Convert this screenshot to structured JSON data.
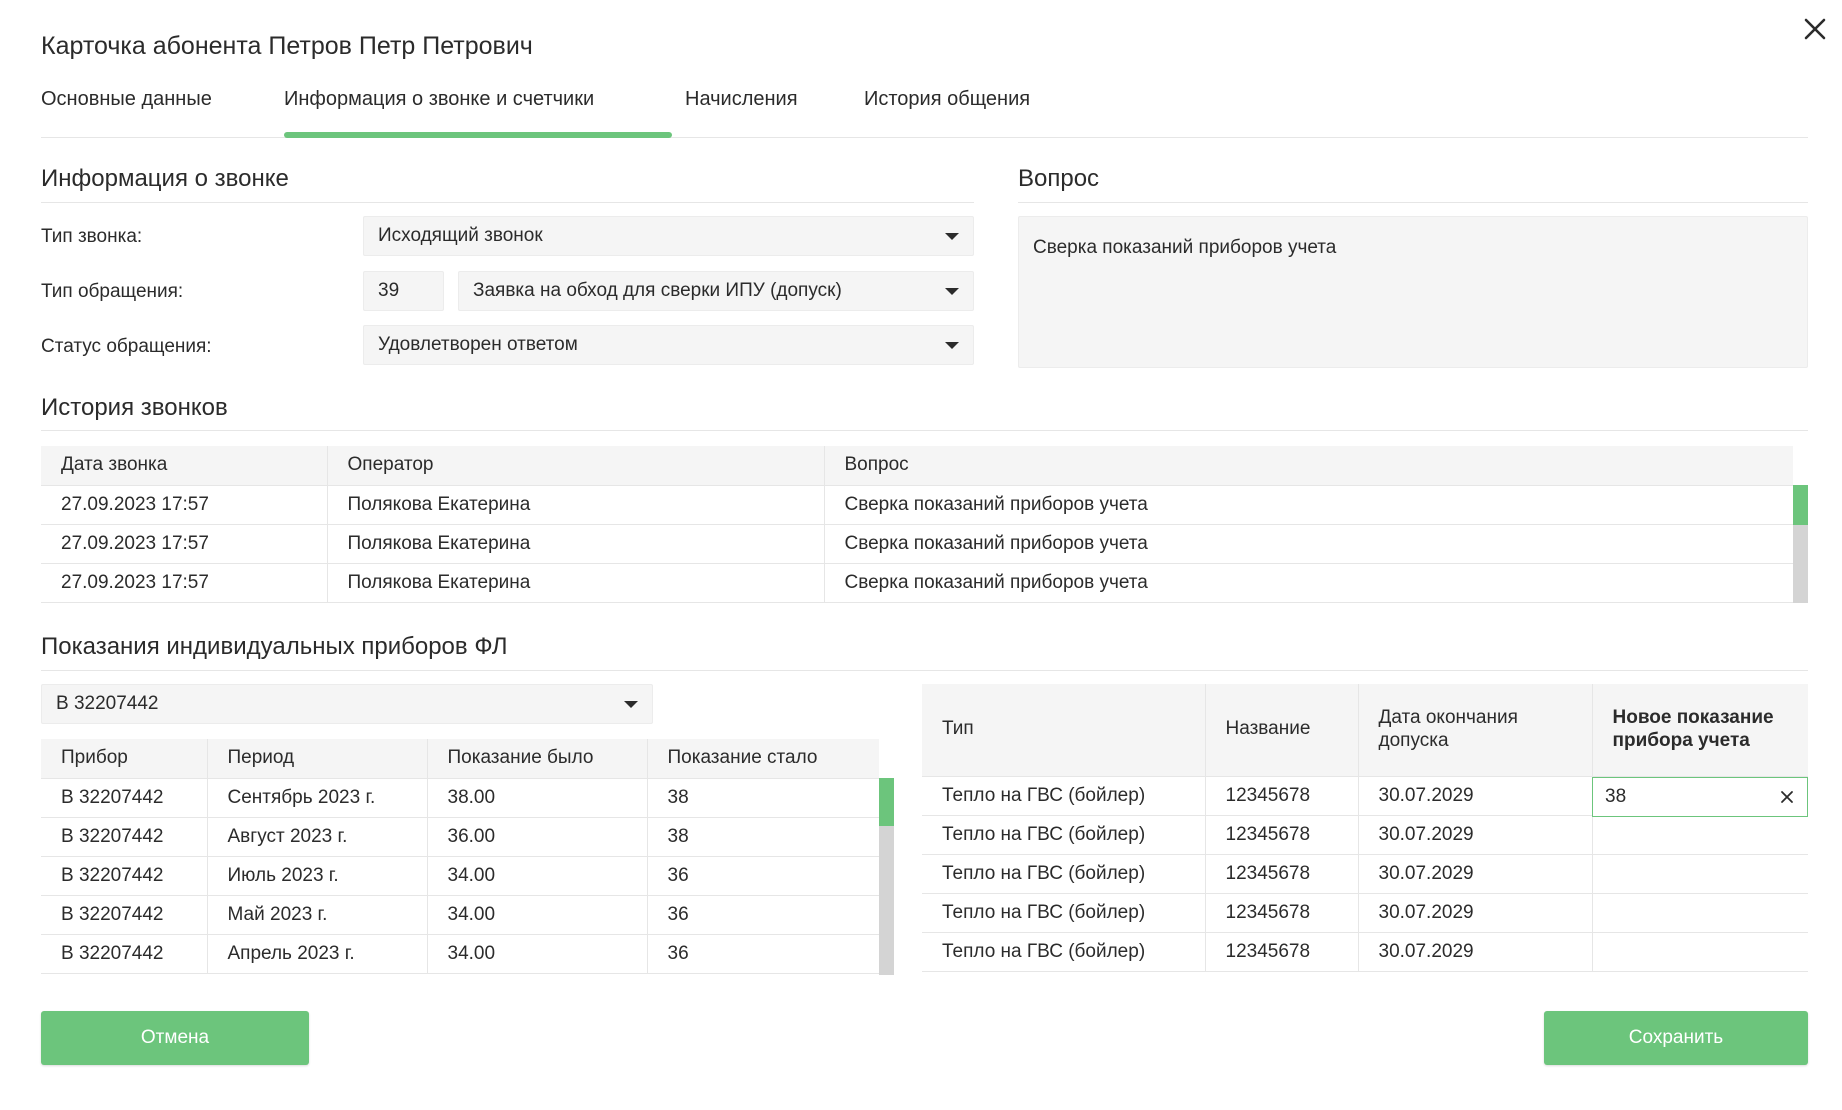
{
  "title": "Карточка абонента Петров Петр Петрович",
  "tabs": [
    {
      "label": "Основные данные",
      "active": false
    },
    {
      "label": "Информация о звонке и счетчики",
      "active": true
    },
    {
      "label": "Начисления",
      "active": false
    },
    {
      "label": "История общения",
      "active": false
    }
  ],
  "call_info": {
    "heading": "Информация о звонке",
    "call_type_label": "Тип звонка:",
    "call_type_value": "Исходящий звонок",
    "request_type_label": "Тип обращения:",
    "request_type_code": "39",
    "request_type_value": "Заявка на обход для сверки ИПУ (допуск)",
    "request_status_label": "Статус обращения:",
    "request_status_value": "Удовлетворен ответом"
  },
  "question": {
    "heading": "Вопрос",
    "text": "Сверка показаний приборов учета"
  },
  "call_history": {
    "heading": "История звонков",
    "columns": [
      "Дата звонка",
      "Оператор",
      "Вопрос"
    ],
    "rows": [
      [
        "27.09.2023 17:57",
        "Полякова Екатерина",
        "Сверка показаний приборов учета"
      ],
      [
        "27.09.2023 17:57",
        "Полякова Екатерина",
        "Сверка показаний приборов учета"
      ],
      [
        "27.09.2023 17:57",
        "Полякова Екатерина",
        "Сверка показаний приборов учета"
      ]
    ]
  },
  "meters": {
    "heading": "Показания индивидуальных приборов ФЛ",
    "selected_meter": "В 32207442",
    "readings_columns": [
      "Прибор",
      "Период",
      "Показание было",
      "Показание стало"
    ],
    "readings_rows": [
      [
        "В 32207442",
        "Сентябрь 2023 г.",
        "38.00",
        "38"
      ],
      [
        "В 32207442",
        "Август 2023 г.",
        "36.00",
        "38"
      ],
      [
        "В 32207442",
        "Июль 2023 г.",
        "34.00",
        "36"
      ],
      [
        "В 32207442",
        "Май 2023 г.",
        "34.00",
        "36"
      ],
      [
        "В 32207442",
        "Апрель 2023 г.",
        "34.00",
        "36"
      ]
    ],
    "devices_columns": [
      "Тип",
      "Название",
      "Дата окончания допуска",
      "Новое показание прибора учета"
    ],
    "devices_rows": [
      [
        "Тепло на ГВС (бойлер)",
        "12345678",
        "30.07.2029",
        "38"
      ],
      [
        "Тепло на ГВС (бойлер)",
        "12345678",
        "30.07.2029",
        ""
      ],
      [
        "Тепло на ГВС (бойлер)",
        "12345678",
        "30.07.2029",
        ""
      ],
      [
        "Тепло на ГВС (бойлер)",
        "12345678",
        "30.07.2029",
        ""
      ],
      [
        "Тепло на ГВС (бойлер)",
        "12345678",
        "30.07.2029",
        ""
      ]
    ]
  },
  "buttons": {
    "cancel": "Отмена",
    "save": "Сохранить"
  },
  "colors": {
    "accent": "#6cc57c",
    "field_bg": "#f5f5f5"
  }
}
